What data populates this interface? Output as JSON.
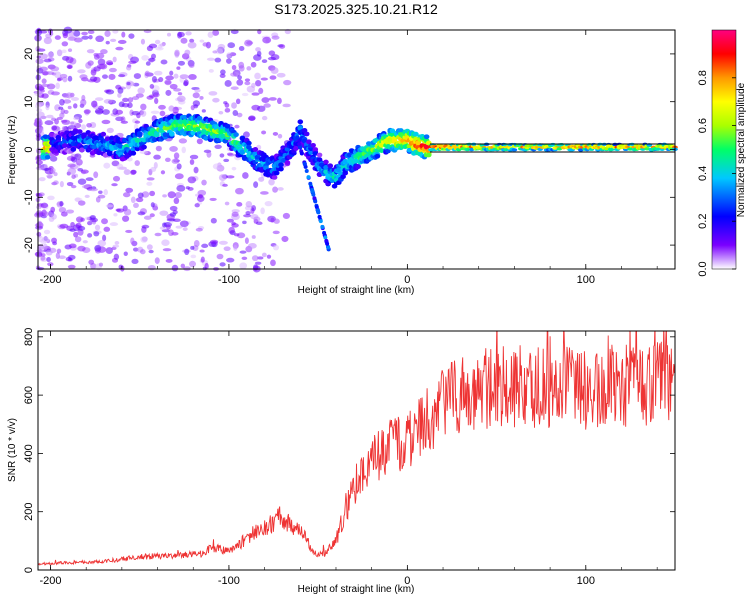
{
  "title": "S173.2025.325.10.21.R12",
  "chart_data": [
    {
      "type": "heatmap",
      "xlabel": "Height of straight line (km)",
      "ylabel": "Frequency (Hz)",
      "xlim": [
        -207,
        150
      ],
      "ylim": [
        -25,
        25
      ],
      "xticks": [
        -200,
        -100,
        0,
        100
      ],
      "yticks": [
        -20,
        -10,
        0,
        10,
        20
      ],
      "colorbar": {
        "label": "Normalized spectral amplitude",
        "range": [
          0.0,
          1.0
        ],
        "ticks": [
          0.0,
          0.2,
          0.4,
          0.6,
          0.8
        ],
        "colors": [
          "#ffffff",
          "#7a00ff",
          "#0000ff",
          "#00c8ff",
          "#00ff66",
          "#aaff00",
          "#ffff00",
          "#ff9900",
          "#ff0000",
          "#ff0080"
        ]
      },
      "ridge": {
        "x": [
          -200,
          -185,
          -170,
          -160,
          -150,
          -140,
          -130,
          -120,
          -110,
          -100,
          -95,
          -90,
          -85,
          -80,
          -75,
          -70,
          -65,
          -60,
          -55,
          -50,
          -45,
          -40,
          -35,
          -30,
          -25,
          -20,
          -15,
          -10,
          -5,
          0,
          5,
          10,
          20,
          40,
          60,
          80,
          100,
          120,
          150
        ],
        "y": [
          1,
          2,
          1,
          0,
          2,
          4,
          5,
          5,
          4,
          3,
          1,
          0,
          -2,
          -3,
          -4,
          -2,
          0,
          4,
          0,
          -3,
          -5,
          -6,
          -3,
          -2,
          -1,
          0,
          1,
          2,
          2,
          2,
          1,
          0.5,
          0.5,
          0.5,
          0.5,
          0.5,
          0.5,
          0.5,
          0.5
        ],
        "amplitude": [
          0.2,
          0.3,
          0.35,
          0.4,
          0.45,
          0.5,
          0.55,
          0.6,
          0.6,
          0.55,
          0.5,
          0.45,
          0.4,
          0.35,
          0.35,
          0.35,
          0.3,
          0.3,
          0.3,
          0.35,
          0.4,
          0.45,
          0.45,
          0.5,
          0.55,
          0.6,
          0.65,
          0.7,
          0.75,
          0.8,
          0.9,
          0.95,
          0.95,
          0.85,
          0.8,
          0.8,
          0.85,
          0.8,
          0.8
        ]
      }
    },
    {
      "type": "line",
      "xlabel": "Height of straight line (km)",
      "ylabel": "SNR (10 * v/v)",
      "xlim": [
        -207,
        150
      ],
      "ylim": [
        0,
        820
      ],
      "xticks": [
        -200,
        -100,
        0,
        100
      ],
      "yticks": [
        0,
        200,
        400,
        600,
        800
      ],
      "color": "#ee3333",
      "series": [
        {
          "name": "SNR",
          "x": [
            -207,
            -190,
            -170,
            -150,
            -130,
            -115,
            -110,
            -100,
            -90,
            -80,
            -70,
            -60,
            -55,
            -50,
            -45,
            -40,
            -35,
            -30,
            -25,
            -20,
            -15,
            -10,
            -5,
            0,
            5,
            10,
            15,
            20,
            25,
            30,
            40,
            50,
            60,
            80,
            100,
            120,
            140,
            150
          ],
          "y": [
            20,
            25,
            30,
            45,
            50,
            55,
            80,
            60,
            110,
            150,
            180,
            130,
            90,
            50,
            60,
            100,
            200,
            280,
            350,
            380,
            400,
            420,
            430,
            440,
            470,
            500,
            530,
            560,
            590,
            600,
            620,
            630,
            630,
            630,
            620,
            630,
            640,
            650
          ]
        }
      ]
    }
  ]
}
